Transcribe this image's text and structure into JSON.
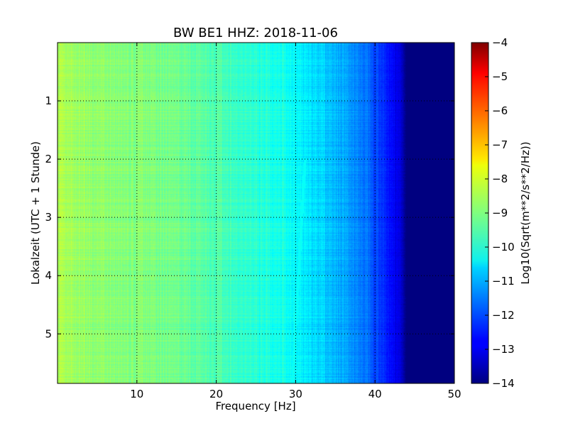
{
  "chart_data": {
    "type": "heatmap",
    "title": "BW BE1 HHZ: 2018-11-06",
    "xlabel": "Frequency [Hz]",
    "ylabel": "Lokalzeit (UTC + 1 Stunde)",
    "colorbar_label": "Log10(Sqrt(m**2/s**2/Hz))",
    "colormap": "jet",
    "x_range": [
      0,
      50
    ],
    "y_range": [
      5.85,
      0
    ],
    "y_inverted": true,
    "x_ticks": [
      10,
      20,
      30,
      40,
      50
    ],
    "x_tick_labels": [
      "10",
      "20",
      "30",
      "40",
      "50"
    ],
    "y_ticks": [
      1,
      2,
      3,
      4,
      5
    ],
    "y_tick_labels": [
      "1",
      "2",
      "3",
      "4",
      "5"
    ],
    "color_range": [
      -14,
      -4
    ],
    "colorbar_ticks": [
      -4,
      -5,
      -6,
      -7,
      -8,
      -9,
      -10,
      -11,
      -12,
      -13,
      -14
    ],
    "colorbar_tick_labels": [
      "−4",
      "−5",
      "−6",
      "−7",
      "−8",
      "−9",
      "−10",
      "−11",
      "−12",
      "−13",
      "−14"
    ],
    "grid": true,
    "grid_style": "dotted",
    "profile": {
      "frequency_hz": [
        0,
        2,
        5,
        8,
        10,
        13,
        16,
        20,
        24,
        28,
        31,
        34,
        37,
        39,
        41,
        43,
        44,
        50
      ],
      "level": [
        -8.6,
        -8.8,
        -8.9,
        -9.0,
        -9.0,
        -9.1,
        -9.2,
        -9.5,
        -9.8,
        -10.0,
        -10.4,
        -10.8,
        -11.2,
        -11.7,
        -12.3,
        -13.0,
        -14.0,
        -14.0
      ]
    },
    "feature": {
      "label": "",
      "from_time": 2.0,
      "to_time": 5.85,
      "from_hz": 31.2,
      "to_hz": 29.6,
      "level": -10.2
    }
  }
}
